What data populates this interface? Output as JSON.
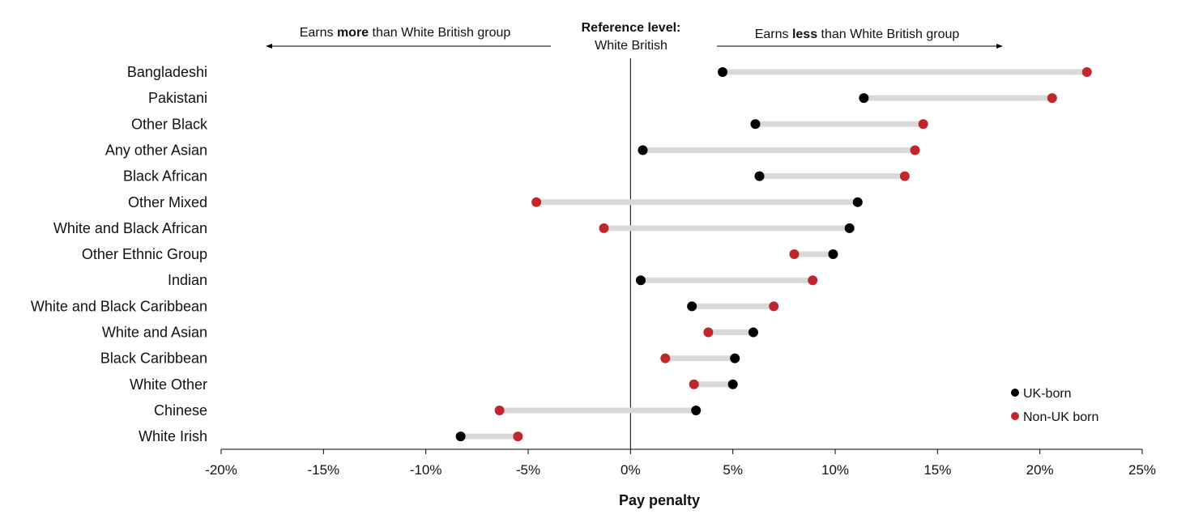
{
  "chart_data": {
    "type": "dumbbell",
    "xlabel": "Pay penalty",
    "xlim": [
      -20,
      25
    ],
    "xticks": [
      -20,
      -15,
      -10,
      -5,
      0,
      5,
      10,
      15,
      20,
      25
    ],
    "xtick_labels": [
      "-20%",
      "-15%",
      "-10%",
      "-5%",
      "0%",
      "5%",
      "10%",
      "15%",
      "20%",
      "25%"
    ],
    "annotations": {
      "left_prefix": "Earns ",
      "left_bold": "more",
      "left_suffix": " than White British group",
      "right_prefix": "Earns ",
      "right_bold": "less",
      "right_suffix": " than White British group",
      "reference_title": "Reference level:",
      "reference_group": "White British"
    },
    "legend": {
      "placement": "bottom-right",
      "entries": [
        {
          "name": "UK-born",
          "color": "#000000"
        },
        {
          "name": "Non-UK born",
          "color": "#c0272d"
        }
      ]
    },
    "categories": [
      "Bangladeshi",
      "Pakistani",
      "Other Black",
      "Any other Asian",
      "Black African",
      "Other Mixed",
      "White and Black African",
      "Other Ethnic Group",
      "Indian",
      "White and Black Caribbean",
      "White and Asian",
      "Black Caribbean",
      "White Other",
      "Chinese",
      "White Irish"
    ],
    "series": [
      {
        "name": "UK-born",
        "color": "#000000",
        "values": [
          4.5,
          11.4,
          6.1,
          0.6,
          6.3,
          11.1,
          10.7,
          9.9,
          0.5,
          3.0,
          6.0,
          5.1,
          5.0,
          3.2,
          -8.3
        ]
      },
      {
        "name": "Non-UK born",
        "color": "#c0272d",
        "values": [
          22.3,
          20.6,
          14.3,
          13.9,
          13.4,
          -4.6,
          -1.3,
          8.0,
          8.9,
          7.0,
          3.8,
          1.7,
          3.1,
          -6.4,
          -5.5
        ]
      }
    ],
    "connector_color": "#d9d9d9"
  }
}
